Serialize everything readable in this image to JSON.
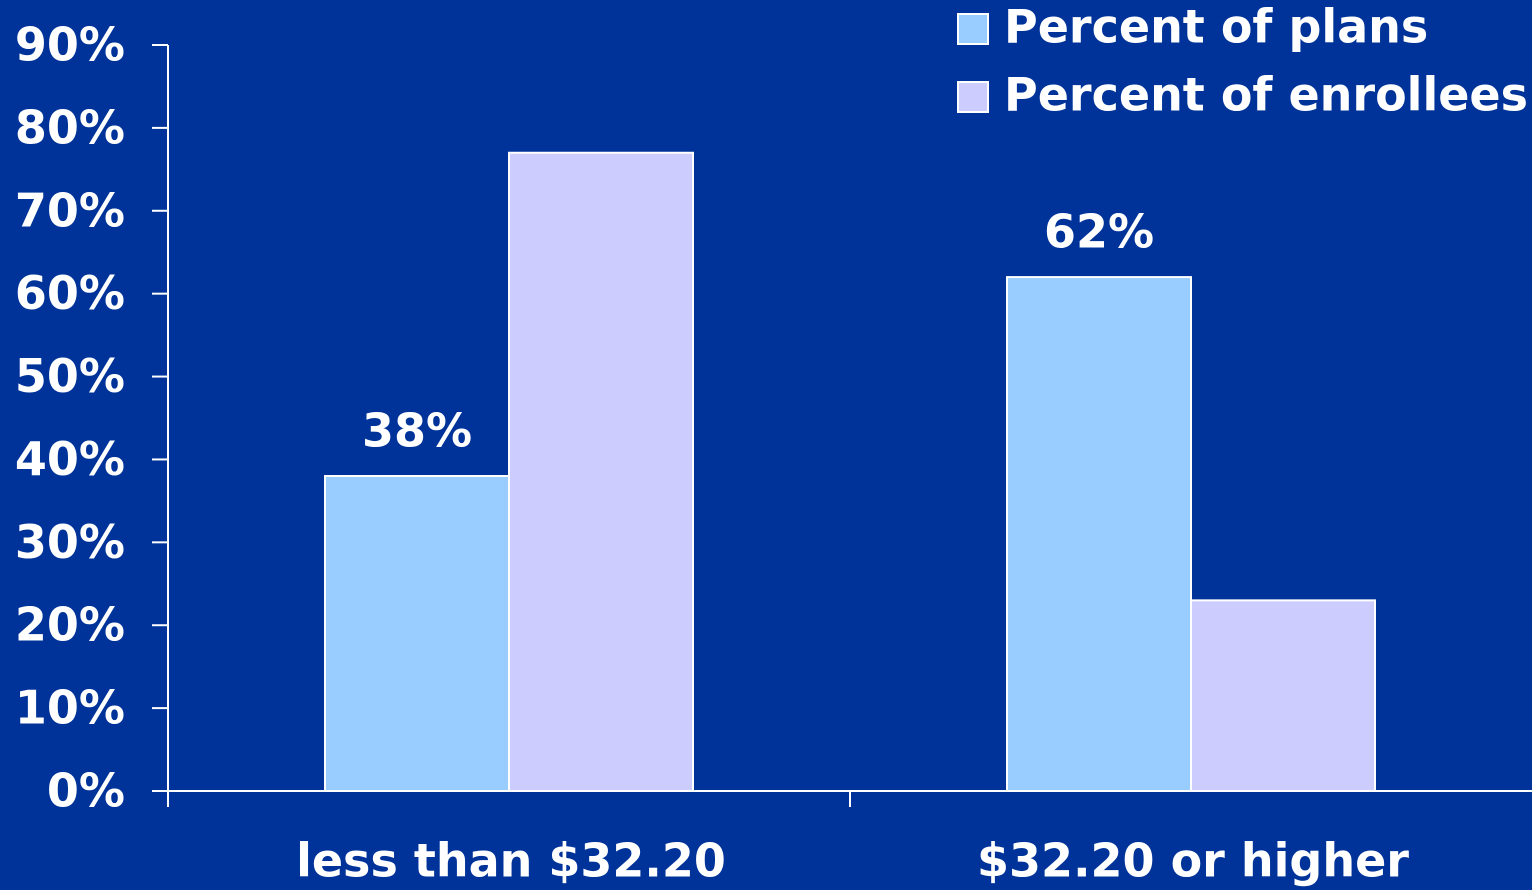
{
  "colors": {
    "background": "#003399",
    "axis": "#FFFFFF",
    "text": "#FFFFFF",
    "bar_outline": "#FFFFFF"
  },
  "chart_data": {
    "type": "bar",
    "title": "",
    "xlabel": "",
    "ylabel": "",
    "categories": [
      "less than $32.20",
      "$32.20 or higher"
    ],
    "series": [
      {
        "name": "Percent of plans",
        "values": [
          38,
          62
        ],
        "color": "#99CCFF",
        "data_labels": [
          "38%",
          "62%"
        ]
      },
      {
        "name": "Percent of enrollees",
        "values": [
          77,
          23
        ],
        "color": "#CCCCFF",
        "data_labels": [
          "",
          ""
        ]
      }
    ],
    "y_tick_values": [
      0,
      10,
      20,
      30,
      40,
      50,
      60,
      70,
      80,
      90
    ],
    "y_tick_labels": [
      "0%",
      "10%",
      "20%",
      "30%",
      "40%",
      "50%",
      "60%",
      "70%",
      "80%",
      "90%"
    ],
    "ylim": [
      0,
      90
    ],
    "grid": false,
    "legend": {
      "position": "top-right",
      "entries": [
        "Percent of plans",
        "Percent of enrollees"
      ]
    }
  }
}
